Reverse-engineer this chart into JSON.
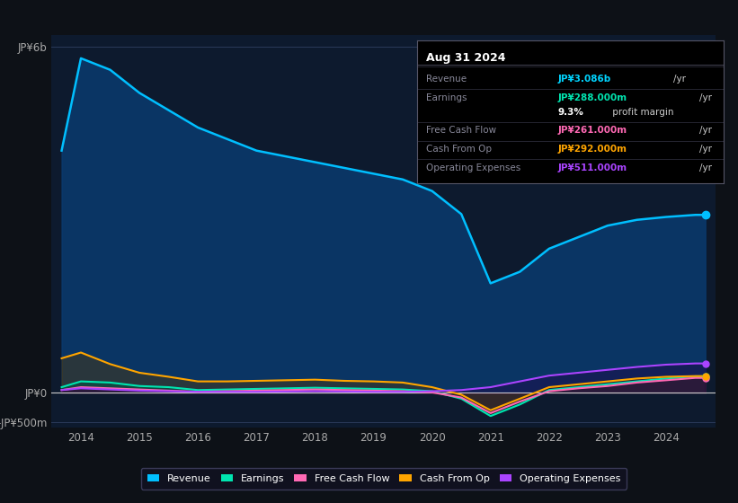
{
  "bg_color": "#0d1117",
  "plot_bg_color": "#0d1a2e",
  "title_box": {
    "date": "Aug 31 2024",
    "rows": [
      {
        "label": "Revenue",
        "value": "JP¥3.086b",
        "unit": "/yr",
        "value_color": "#00d4ff"
      },
      {
        "label": "Earnings",
        "value": "JP¥288.000m",
        "unit": "/yr",
        "value_color": "#00e5b0"
      },
      {
        "label": "",
        "value": "9.3%",
        "unit": " profit margin",
        "value_color": "#ffffff"
      },
      {
        "label": "Free Cash Flow",
        "value": "JP¥261.000m",
        "unit": "/yr",
        "value_color": "#ff69b4"
      },
      {
        "label": "Cash From Op",
        "value": "JP¥292.000m",
        "unit": "/yr",
        "value_color": "#ffa500"
      },
      {
        "label": "Operating Expenses",
        "value": "JP¥511.000m",
        "unit": "/yr",
        "value_color": "#aa44ff"
      }
    ]
  },
  "years": [
    2013.67,
    2014.0,
    2014.5,
    2015.0,
    2015.5,
    2016.0,
    2016.5,
    2017.0,
    2017.5,
    2018.0,
    2018.5,
    2019.0,
    2019.5,
    2020.0,
    2020.5,
    2021.0,
    2021.5,
    2022.0,
    2022.5,
    2023.0,
    2023.5,
    2024.0,
    2024.5,
    2024.67
  ],
  "revenue": [
    4200,
    5800,
    5600,
    5200,
    4900,
    4600,
    4400,
    4200,
    4100,
    4000,
    3900,
    3800,
    3700,
    3500,
    3100,
    1900,
    2100,
    2500,
    2700,
    2900,
    3000,
    3050,
    3086,
    3086
  ],
  "earnings": [
    100,
    200,
    180,
    120,
    100,
    50,
    60,
    70,
    80,
    90,
    80,
    70,
    60,
    30,
    -100,
    -400,
    -200,
    50,
    100,
    150,
    200,
    250,
    288,
    288
  ],
  "free_cash_flow": [
    50,
    100,
    80,
    60,
    40,
    20,
    30,
    40,
    50,
    60,
    50,
    40,
    30,
    10,
    -80,
    -350,
    -150,
    30,
    80,
    120,
    180,
    220,
    261,
    261
  ],
  "cash_from_op": [
    600,
    700,
    500,
    350,
    280,
    200,
    200,
    210,
    220,
    230,
    210,
    200,
    180,
    100,
    -30,
    -300,
    -100,
    100,
    150,
    200,
    250,
    280,
    292,
    292
  ],
  "operating_expenses": [
    50,
    80,
    60,
    40,
    30,
    20,
    20,
    20,
    25,
    30,
    25,
    20,
    20,
    30,
    50,
    100,
    200,
    300,
    350,
    400,
    450,
    490,
    511,
    511
  ],
  "xlim": [
    2013.5,
    2024.85
  ],
  "ylim": [
    -600,
    6200
  ],
  "yticks": [
    -500,
    0,
    6000
  ],
  "ytick_labels": [
    "-JP¥500m",
    "JP¥0",
    "JP¥6b"
  ],
  "xtick_years": [
    2014,
    2015,
    2016,
    2017,
    2018,
    2019,
    2020,
    2021,
    2022,
    2023,
    2024
  ],
  "revenue_color": "#00bfff",
  "earnings_color": "#00e5b0",
  "free_cash_flow_color": "#ff69b4",
  "cash_from_op_color": "#ffa500",
  "operating_expenses_color": "#aa44ff",
  "legend_bg": "#111122",
  "legend_border": "#444466"
}
